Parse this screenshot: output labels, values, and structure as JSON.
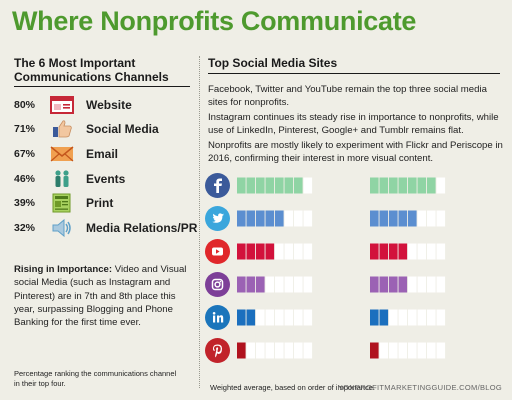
{
  "title": "Where Nonprofits Communicate",
  "left": {
    "heading_line1": "The 6 Most Important",
    "heading_line2": "Communications Channels"
  },
  "channels": [
    {
      "pct": "80%",
      "label": "Website",
      "icon": "website-icon",
      "color": "#c62838"
    },
    {
      "pct": "71%",
      "label": "Social Media",
      "icon": "thumbs-up-icon",
      "color": "#5b8dd0"
    },
    {
      "pct": "67%",
      "label": "Email",
      "icon": "envelope-icon",
      "color": "#e07b2a"
    },
    {
      "pct": "46%",
      "label": "Events",
      "icon": "people-icon",
      "color": "#3ea08a"
    },
    {
      "pct": "39%",
      "label": "Print",
      "icon": "newspaper-icon",
      "color": "#8dbf3c"
    },
    {
      "pct": "32%",
      "label": "Media Relations/PR",
      "icon": "speaker-icon",
      "color": "#5fa0c8"
    }
  ],
  "rising": {
    "lead": "Rising in Importance:",
    "body": " Video and Visual social Media (such as Instagram and Pinterest) are in 7th and 8th place this year, surpassing Blogging and Phone Banking for the first time ever."
  },
  "footnote_left": "Percentage ranking the communications channel in their top four.",
  "right": {
    "heading": "Top Social Media Sites",
    "para1": "Facebook, Twitter and YouTube remain the top three social media sites for nonprofits.",
    "para2": "Instagram continues its steady rise in importance to nonprofits, while use of LinkedIn, Pinterest, Google+ and Tumblr remains flat.",
    "para3": "Nonprofits are mostly likely to experiment with Flickr and Periscope in 2016, confirming their interest in more visual content."
  },
  "footnote_right": "Weighted average, based on order of importance.",
  "site": "NONPROFITMARKETINGGUIDE.COM/BLOG",
  "chart_data": {
    "type": "bar",
    "categories": [
      "Facebook",
      "Twitter",
      "YouTube",
      "Instagram",
      "LinkedIn",
      "Pinterest"
    ],
    "series": [
      {
        "values": [
          7,
          5,
          4,
          3,
          2,
          1
        ]
      },
      {
        "values": [
          7,
          5,
          4,
          4,
          2,
          1
        ]
      }
    ],
    "max_segments": 8,
    "colors": {
      "Facebook": "#8fd4a4",
      "Twitter": "#5b8ed0",
      "YouTube": "#d2123c",
      "Instagram": "#9b62b4",
      "LinkedIn": "#1b6fbe",
      "Pinterest": "#b0121e",
      "empty": "#ffffff"
    },
    "icon_colors": {
      "Facebook": "#3b5a9a",
      "Twitter": "#3aa6dc",
      "YouTube": "#e0272b",
      "Instagram": "#7d3f98",
      "LinkedIn": "#1b75bb",
      "Pinterest": "#c1232a"
    }
  }
}
